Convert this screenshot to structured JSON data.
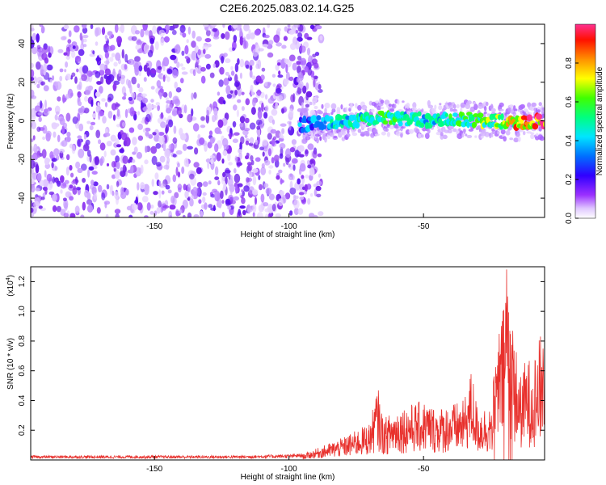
{
  "title": "C2E6.2025.083.02.14.G25",
  "colors": {
    "snr_line": "#e8302c",
    "colormap": [
      "#ffffff",
      "#d9b8ff",
      "#8a2be2",
      "#3a00ff",
      "#0080ff",
      "#00e0ff",
      "#00ff66",
      "#ffff00",
      "#ff8000",
      "#ff0000",
      "#ff2080"
    ]
  },
  "chart_data": [
    {
      "type": "heatmap",
      "title": "C2E6.2025.083.02.14.G25",
      "xlabel": "Height of straight line (km)",
      "ylabel": "Frequency (Hz)",
      "xlim": [
        -196,
        -5
      ],
      "ylim": [
        -50,
        50
      ],
      "xticks": [
        -150,
        -100,
        -50
      ],
      "yticks": [
        -40,
        -20,
        0,
        20,
        40
      ],
      "xtick_labels": [
        "-150",
        "-100",
        "-50"
      ],
      "ytick_labels": [
        "-40",
        "-20",
        "0",
        "20",
        "40"
      ],
      "noise_region_x": [
        -196,
        -88
      ],
      "signal_region_x": [
        -96,
        -5
      ],
      "signal_track": {
        "x": [
          -96,
          -85,
          -75,
          -65,
          -55,
          -45,
          -35,
          -25,
          -15,
          -5
        ],
        "freq": [
          -2,
          -1,
          0,
          2,
          1,
          0,
          1,
          0,
          -1,
          0
        ],
        "amplitude": [
          0.3,
          0.4,
          0.5,
          0.55,
          0.5,
          0.45,
          0.55,
          0.6,
          0.85,
          0.95
        ]
      },
      "colorbar": {
        "label": "Normalized spectral amplitude",
        "range": [
          0,
          1
        ],
        "ticks": [
          0.0,
          0.2,
          0.4,
          0.6,
          0.8
        ],
        "tick_labels": [
          "0.0",
          "0.2",
          "0.4",
          "0.6",
          "0.8"
        ]
      }
    },
    {
      "type": "line",
      "xlabel": "Height of straight line (km)",
      "ylabel": "SNR (10 * v/v)",
      "y_scale_label": "(x10",
      "y_scale_exponent": "4",
      "xlim": [
        -196,
        -5
      ],
      "ylim": [
        0,
        1.3
      ],
      "xticks": [
        -150,
        -100,
        -50
      ],
      "yticks": [
        0.2,
        0.4,
        0.6,
        0.8,
        1.0,
        1.2
      ],
      "xtick_labels": [
        "-150",
        "-100",
        "-50"
      ],
      "ytick_labels": [
        "0.2",
        "0.4",
        "0.6",
        "0.8",
        "1.0",
        "1.2"
      ],
      "series": [
        {
          "x": [
            -196,
            -180,
            -160,
            -140,
            -120,
            -100,
            -95,
            -90,
            -85,
            -80,
            -75,
            -70,
            -67,
            -65,
            -60,
            -55,
            -50,
            -45,
            -40,
            -35,
            -32,
            -30,
            -25,
            -22,
            -20,
            -19,
            -18,
            -16,
            -14,
            -12,
            -10,
            -8,
            -6,
            -5
          ],
          "y": [
            0.02,
            0.02,
            0.02,
            0.02,
            0.02,
            0.025,
            0.03,
            0.06,
            0.09,
            0.12,
            0.16,
            0.2,
            0.4,
            0.22,
            0.28,
            0.3,
            0.32,
            0.28,
            0.3,
            0.32,
            0.5,
            0.28,
            0.3,
            0.7,
            0.85,
            1.28,
            0.9,
            0.65,
            0.45,
            0.55,
            0.55,
            0.6,
            0.7,
            0.75
          ]
        }
      ]
    }
  ]
}
